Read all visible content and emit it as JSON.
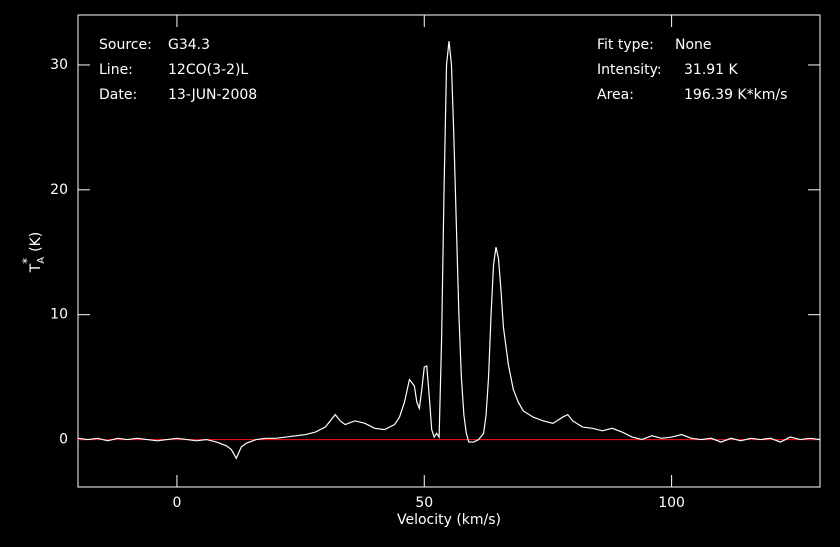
{
  "chart_data": {
    "type": "line",
    "x_label": "Velocity (km/s)",
    "y_label": {
      "main": "T",
      "sub": "A",
      "sup": "*",
      "unit": "(K)"
    },
    "info_left": [
      {
        "label": "Source:",
        "value": "G34.3"
      },
      {
        "label": "Line:",
        "value": "12CO(3-2)L"
      },
      {
        "label": "Date:",
        "value": "13-JUN-2008"
      }
    ],
    "info_right": [
      {
        "label": "Fit type:",
        "value": "None"
      },
      {
        "label": "Intensity:",
        "value": "31.91 K"
      },
      {
        "label": "Area:",
        "value": "196.39 K*km/s"
      }
    ],
    "xlim": [
      -20,
      130
    ],
    "ylim": [
      -3.8,
      34
    ],
    "xticks": [
      0,
      50,
      100
    ],
    "yticks": [
      0,
      10,
      20,
      30
    ],
    "baseline": 0,
    "baseline_color": "#e01010",
    "series": [
      {
        "color": "#ffffff",
        "x": [
          -20,
          -18,
          -16,
          -14,
          -12,
          -10,
          -8,
          -6,
          -4,
          -2,
          0,
          2,
          4,
          6,
          8,
          10,
          11,
          12,
          13,
          14,
          16,
          18,
          20,
          22,
          24,
          26,
          28,
          30,
          31,
          32,
          33,
          34,
          36,
          38,
          40,
          42,
          44,
          45,
          46,
          47,
          48,
          48.5,
          49,
          49.5,
          50,
          50.5,
          51,
          51.5,
          52,
          52.5,
          53,
          53.5,
          54,
          54.5,
          55,
          55.5,
          56,
          56.5,
          57,
          57.5,
          58,
          58.5,
          59,
          60,
          61,
          62,
          62.5,
          63,
          63.5,
          64,
          64.5,
          65,
          65.5,
          66,
          67,
          68,
          69,
          70,
          72,
          74,
          76,
          78,
          79,
          80,
          82,
          84,
          86,
          88,
          90,
          92,
          94,
          96,
          98,
          100,
          102,
          104,
          106,
          108,
          110,
          112,
          114,
          116,
          118,
          120,
          122,
          124,
          126,
          128,
          130
        ],
        "values": [
          0.1,
          0,
          0.1,
          -0.1,
          0.1,
          0,
          0.1,
          0,
          -0.1,
          0,
          0.1,
          0,
          -0.1,
          0,
          -0.2,
          -0.5,
          -0.8,
          -1.5,
          -0.6,
          -0.3,
          0,
          0.1,
          0.1,
          0.2,
          0.3,
          0.4,
          0.6,
          1.0,
          1.5,
          2.0,
          1.5,
          1.2,
          1.5,
          1.3,
          0.9,
          0.8,
          1.2,
          1.8,
          3.0,
          4.8,
          4.3,
          3.0,
          2.5,
          4.0,
          5.8,
          5.9,
          3.5,
          0.8,
          0.2,
          0.5,
          0.2,
          8,
          20,
          30,
          31.9,
          30,
          24,
          17,
          10,
          5,
          2,
          0.5,
          -0.2,
          -0.2,
          0,
          0.5,
          2,
          5,
          10,
          14,
          15.4,
          14.5,
          12,
          9,
          6,
          4,
          3,
          2.3,
          1.8,
          1.5,
          1.3,
          1.8,
          2.0,
          1.5,
          1.0,
          0.9,
          0.7,
          0.9,
          0.6,
          0.2,
          0,
          0.3,
          0.1,
          0.2,
          0.4,
          0.1,
          0,
          0.1,
          -0.2,
          0.1,
          -0.1,
          0.1,
          0,
          0.1,
          -0.2,
          0.2,
          0,
          0.1,
          0
        ]
      }
    ]
  }
}
